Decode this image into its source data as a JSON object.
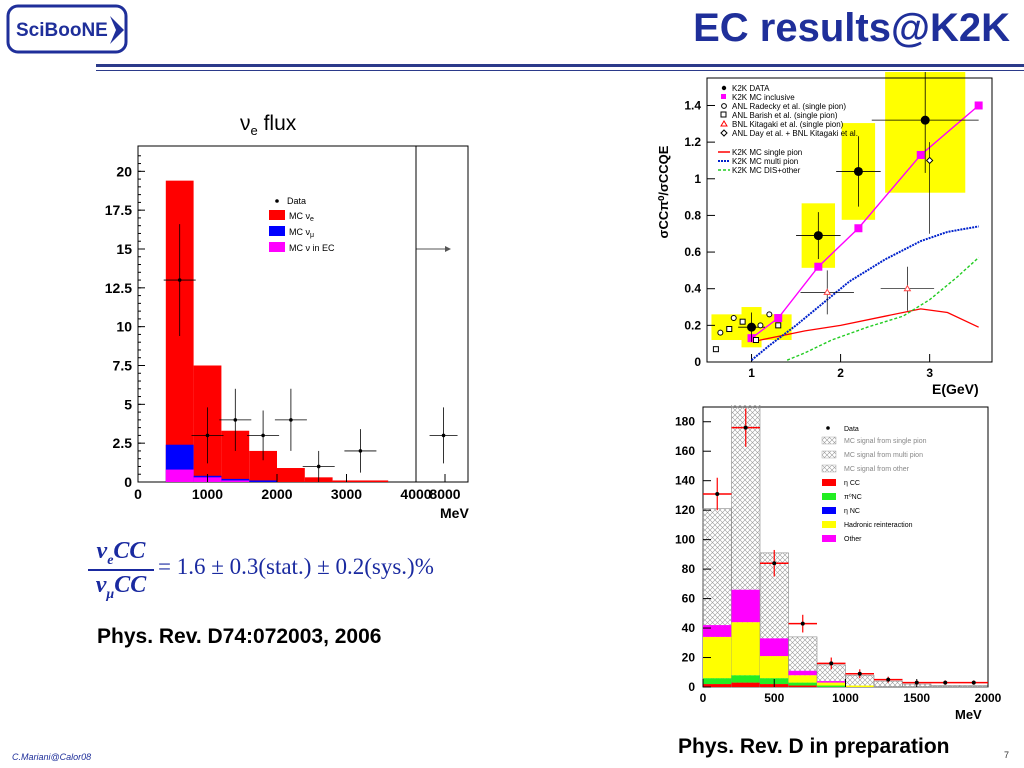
{
  "logo": {
    "text": "SciBooNE"
  },
  "slide": {
    "title": "EC results@K2K",
    "footer": "C.Mariani@Calor08",
    "page": "7"
  },
  "left_plot": {
    "title_sym": "ν",
    "title_sub": "e",
    "title_rest": " flux",
    "legend": [
      "Data",
      "MC ν",
      "MC ν",
      "MC ν in EC"
    ],
    "legend_subs": [
      "",
      "e",
      "μ",
      ""
    ],
    "xlabel": "MeV"
  },
  "formula": {
    "num": "ν",
    "num_sub": "e",
    "num_rest": "CC",
    "den": "ν",
    "den_sub": "μ",
    "den_rest": "CC",
    "rhs": "= 1.6 ± 0.3(stat.) ± 0.2(sys.)%"
  },
  "refs": {
    "left": "Phys. Rev. D74:072003, 2006",
    "right": "Phys. Rev. D in preparation"
  },
  "right_top": {
    "ylabel": "σCCπ⁰/σCCQE",
    "xlabel": "E(GeV)",
    "legend": [
      "K2K DATA",
      "K2K MC inclusive",
      "ANL Radecky et al. (single pion)",
      "ANL Barish et al. (single pion)",
      "BNL Kitagaki et al. (single pion)",
      "ANL Day et al. + BNL Kitagaki et al.",
      "K2K MC single pion",
      "K2K MC multi pion",
      "K2K MC DIS+other"
    ]
  },
  "right_bottom": {
    "xlabel": "MeV",
    "legend": [
      "Data",
      "MC signal from single pion",
      "MC signal from multi pion",
      "MC signal from other",
      "η CC",
      "π⁰NC",
      "η NC",
      "Hadronic reinteraction",
      "Other"
    ]
  },
  "colors": {
    "title": "#1f2f9a",
    "mc_nue": "#ff0000",
    "mc_numu": "#0000ff",
    "mc_ec": "#ff00ff",
    "highlight": "#ffff00"
  },
  "chart_data": [
    {
      "type": "bar",
      "title": "νe flux",
      "xlabel": "MeV",
      "xlim": [
        0,
        8000
      ],
      "ylim": [
        0,
        22
      ],
      "x_ticks": [
        "0",
        "1000",
        "2000",
        "3000",
        "4000",
        "8000"
      ],
      "y_ticks": [
        "0",
        "2.5",
        "5",
        "7.5",
        "10",
        "12.5",
        "15",
        "17.5",
        "20"
      ],
      "bin_edges": [
        400,
        800,
        1200,
        1600,
        2000,
        2400,
        2800,
        3600
      ],
      "series": [
        {
          "name": "MC νe",
          "values": [
            19.4,
            7.5,
            3.3,
            2.0,
            0.9,
            0.3,
            0.1
          ]
        },
        {
          "name": "MC νμ",
          "values": [
            2.4,
            0.4,
            0.2,
            0.1,
            0.0,
            0.0,
            0.0
          ]
        },
        {
          "name": "MC ν in EC",
          "values": [
            0.8,
            0.3,
            0.1,
            0.0,
            0.0,
            0.0,
            0.0
          ]
        }
      ],
      "data_points": [
        {
          "x": 600,
          "y": 13.0,
          "err": 3.6
        },
        {
          "x": 1000,
          "y": 3.0,
          "err": 1.8
        },
        {
          "x": 1400,
          "y": 4.0,
          "err": 2.0
        },
        {
          "x": 1800,
          "y": 3.0,
          "err": 1.6
        },
        {
          "x": 2200,
          "y": 4.0,
          "err": 2.0
        },
        {
          "x": 2600,
          "y": 1.0,
          "err": 1.0
        },
        {
          "x": 3200,
          "y": 2.0,
          "err": 1.4
        },
        {
          "x": 7800,
          "y": 3.0,
          "err": 1.8
        }
      ]
    },
    {
      "type": "scatter",
      "xlabel": "E(GeV)",
      "ylabel": "σCCπ⁰/σCCQE",
      "xlim": [
        0.5,
        3.7
      ],
      "ylim": [
        0,
        1.55
      ],
      "x_ticks": [
        "1",
        "2",
        "3"
      ],
      "y_ticks": [
        "0",
        "0.2",
        "0.4",
        "0.6",
        "0.8",
        "1",
        "1.2",
        "1.4"
      ],
      "k2k_data": [
        {
          "x": 1.0,
          "y": 0.19,
          "ex": 0.15,
          "ey": 0.05
        },
        {
          "x": 1.75,
          "y": 0.69,
          "ex": 0.25,
          "ey": 0.08
        },
        {
          "x": 2.2,
          "y": 1.04,
          "ex": 0.25,
          "ey": 0.12
        },
        {
          "x": 2.95,
          "y": 1.32,
          "ex": 0.6,
          "ey": 0.18
        }
      ],
      "k2k_mc_inclusive": {
        "x": [
          1.0,
          1.3,
          1.75,
          2.2,
          2.9,
          3.55
        ],
        "y": [
          0.13,
          0.24,
          0.52,
          0.73,
          1.13,
          1.4
        ]
      },
      "mc_single_pion": {
        "x": [
          1.0,
          1.3,
          1.6,
          2.0,
          2.5,
          2.9,
          3.2,
          3.55
        ],
        "y": [
          0.11,
          0.14,
          0.17,
          0.2,
          0.25,
          0.29,
          0.27,
          0.19
        ]
      },
      "mc_multi_pion": {
        "x": [
          1.0,
          1.2,
          1.5,
          1.8,
          2.1,
          2.5,
          2.9,
          3.2,
          3.55
        ],
        "y": [
          0.01,
          0.09,
          0.2,
          0.32,
          0.44,
          0.56,
          0.66,
          0.71,
          0.74
        ]
      },
      "mc_dis_other": {
        "x": [
          1.4,
          1.6,
          1.9,
          2.3,
          2.7,
          3.0,
          3.3,
          3.55
        ],
        "y": [
          0.01,
          0.05,
          0.12,
          0.19,
          0.25,
          0.34,
          0.46,
          0.57
        ]
      }
    },
    {
      "type": "bar",
      "xlabel": "MeV",
      "xlim": [
        0,
        2000
      ],
      "ylim": [
        0,
        190
      ],
      "x_ticks": [
        "0",
        "500",
        "1000",
        "1500",
        "2000"
      ],
      "y_ticks": [
        "0",
        "20",
        "40",
        "60",
        "80",
        "100",
        "120",
        "140",
        "160",
        "180"
      ],
      "bin_edges": [
        0,
        200,
        400,
        600,
        800,
        1000,
        1200,
        1400,
        1600,
        1800,
        2000
      ],
      "stacks": {
        "eta_cc": [
          2,
          3,
          2,
          1,
          0,
          0,
          0,
          0,
          0,
          0
        ],
        "pi0_nc": [
          4,
          5,
          4,
          2,
          1,
          0,
          0,
          0,
          0,
          0
        ],
        "eta_nc": [
          0,
          0,
          0,
          0,
          0,
          0,
          0,
          0,
          0,
          0
        ],
        "hadronic": [
          28,
          36,
          15,
          5,
          2,
          1,
          0,
          0,
          0,
          0
        ],
        "other": [
          8,
          22,
          12,
          3,
          1,
          0,
          0,
          0,
          0,
          0
        ],
        "mc_total": [
          121,
          192,
          91,
          34,
          15,
          8,
          4,
          2,
          1,
          1
        ]
      },
      "data_points": [
        {
          "x": 100,
          "y": 131,
          "err": 11
        },
        {
          "x": 300,
          "y": 176,
          "err": 13
        },
        {
          "x": 500,
          "y": 84,
          "err": 9
        },
        {
          "x": 700,
          "y": 43,
          "err": 6
        },
        {
          "x": 900,
          "y": 16,
          "err": 4
        },
        {
          "x": 1100,
          "y": 9,
          "err": 3
        },
        {
          "x": 1300,
          "y": 5,
          "err": 2
        },
        {
          "x": 1500,
          "y": 3,
          "err": 1.5
        },
        {
          "x": 1700,
          "y": 3,
          "err": 1.5
        },
        {
          "x": 1900,
          "y": 3,
          "err": 1.5
        }
      ]
    }
  ]
}
